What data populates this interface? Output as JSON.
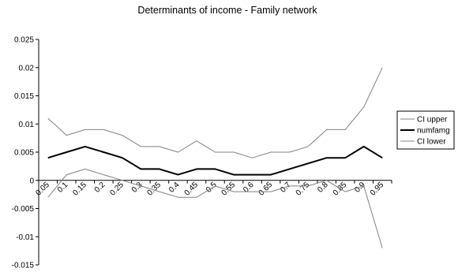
{
  "chart_data": {
    "type": "line",
    "title": "Determinants of income - Family network",
    "xlabel": "",
    "ylabel": "",
    "categories": [
      "0.05",
      "0.1",
      "0.15",
      "0.2",
      "0.25",
      "0.3",
      "0.35",
      "0.4",
      "0.45",
      "0.5",
      "0.55",
      "0.6",
      "0.65",
      "0.7",
      "0.75",
      "0.8",
      "0.85",
      "0.9",
      "0.95"
    ],
    "ylim": [
      -0.015,
      0.025
    ],
    "yticks": [
      "0.025",
      "0.02",
      "0.015",
      "0.01",
      "0.005",
      "0",
      "-0.005",
      "-0.01",
      "-0.015"
    ],
    "ytick_values": [
      0.025,
      0.02,
      0.015,
      0.01,
      0.005,
      0,
      -0.005,
      -0.01,
      -0.015
    ],
    "grid": false,
    "legend_position": "right",
    "series": [
      {
        "name": "CI upper",
        "color": "#808080",
        "width": 1,
        "values": [
          0.011,
          0.008,
          0.009,
          0.009,
          0.008,
          0.006,
          0.006,
          0.005,
          0.007,
          0.005,
          0.005,
          0.004,
          0.005,
          0.005,
          0.006,
          0.009,
          0.009,
          0.013,
          0.02
        ]
      },
      {
        "name": "numfamg",
        "color": "#000000",
        "width": 2,
        "values": [
          0.004,
          0.005,
          0.006,
          0.005,
          0.004,
          0.002,
          0.002,
          0.001,
          0.002,
          0.002,
          0.001,
          0.001,
          0.001,
          0.002,
          0.003,
          0.004,
          0.004,
          0.006,
          0.004
        ]
      },
      {
        "name": "CI lower",
        "color": "#808080",
        "width": 1,
        "values": [
          -0.003,
          0.001,
          0.002,
          0.001,
          0.0,
          -0.001,
          -0.002,
          -0.003,
          -0.003,
          -0.001,
          -0.002,
          -0.002,
          -0.002,
          -0.001,
          -0.001,
          0.0,
          -0.002,
          -0.001,
          -0.012
        ]
      }
    ]
  }
}
